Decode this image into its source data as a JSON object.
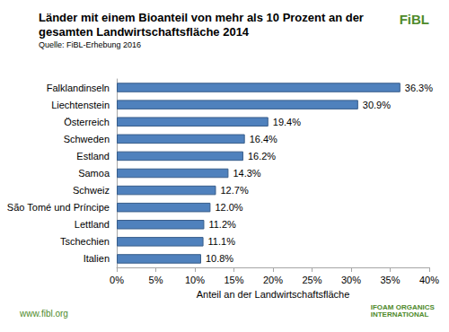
{
  "chart_data": {
    "type": "bar",
    "orientation": "horizontal",
    "title": "Länder mit einem Bioanteil von mehr als 10 Prozent an der gesamten Landwirtschaftsfläche 2014",
    "subtitle": "Quelle: FiBL-Erhebung 2016",
    "x_label": "Anteil an der Landwirtschaftsfläche",
    "categories": [
      "Falklandinseln",
      "Liechtenstein",
      "Österreich",
      "Schweden",
      "Estland",
      "Samoa",
      "Schweiz",
      "São Tomé und Príncipe",
      "Lettland",
      "Tschechien",
      "Italien"
    ],
    "values": [
      36.3,
      30.9,
      19.4,
      16.4,
      16.2,
      14.3,
      12.7,
      12.0,
      11.2,
      11.1,
      10.8
    ],
    "value_labels": [
      "36.3%",
      "30.9%",
      "19.4%",
      "16.4%",
      "16.2%",
      "14.3%",
      "12.7%",
      "12.0%",
      "11.2%",
      "11.1%",
      "10.8%"
    ],
    "data_labels": true,
    "color": "#4f81bd",
    "xlim": [
      0,
      40
    ],
    "xticks": [
      {
        "value": 0,
        "label": "0%"
      },
      {
        "value": 5,
        "label": "5%"
      },
      {
        "value": 10,
        "label": "10%"
      },
      {
        "value": 15,
        "label": "15%"
      },
      {
        "value": 20,
        "label": "20%"
      },
      {
        "value": 25,
        "label": "25%"
      },
      {
        "value": 30,
        "label": "30%"
      },
      {
        "value": 35,
        "label": "35%"
      },
      {
        "value": 40,
        "label": "40%"
      }
    ],
    "grid": false,
    "annotations": [
      "FiBL",
      "www.fibl.org",
      "IFOAM ORGANICS INTERNATIONAL"
    ]
  }
}
